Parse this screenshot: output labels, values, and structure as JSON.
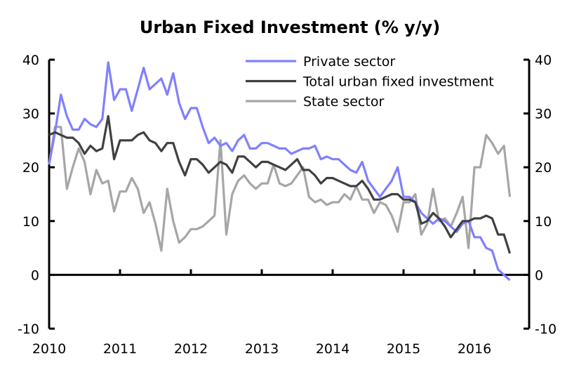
{
  "chart_data": {
    "type": "line",
    "title": "Urban Fixed Investment (% y/y)",
    "xlabel": "",
    "ylabel": "",
    "ylim": [
      -10,
      40
    ],
    "yticks": [
      -10,
      0,
      10,
      20,
      30,
      40
    ],
    "y2ticks": [
      -10,
      0,
      10,
      20,
      30,
      40
    ],
    "xticks": [
      "2010",
      "2011",
      "2012",
      "2013",
      "2014",
      "2015",
      "2016"
    ],
    "x_start": "2010-01",
    "x_frequency": "monthly",
    "grid": false,
    "legend_position": "top-center",
    "series": [
      {
        "name": "Private sector",
        "color": "#8080ff",
        "values": [
          20.5,
          26.5,
          33.5,
          29.5,
          27,
          27,
          29,
          28,
          27.5,
          29,
          39.5,
          32.5,
          34.5,
          34.5,
          30.5,
          34.5,
          38.5,
          34.5,
          35.5,
          36.5,
          33.5,
          37.5,
          32,
          29,
          31,
          31,
          27.5,
          24.5,
          25.5,
          24,
          24.5,
          23,
          25,
          26,
          23.5,
          23.5,
          24.5,
          24.5,
          24,
          23.5,
          23.5,
          22.5,
          23,
          23.5,
          23.5,
          24,
          21.5,
          22,
          21.5,
          21.5,
          20.5,
          19.5,
          19,
          21,
          17.5,
          16,
          14.5,
          16,
          17.5,
          20,
          14.5,
          14.5,
          13.5,
          11.5,
          10.5,
          9.5,
          10.5,
          10,
          9,
          8,
          9.5,
          10,
          7,
          7,
          5,
          4.5,
          1,
          0,
          -1
        ]
      },
      {
        "name": "Total urban fixed investment",
        "color": "#404040",
        "values": [
          26,
          26.5,
          26,
          25.5,
          25.5,
          24.5,
          22.5,
          24,
          23,
          23.5,
          29.5,
          21.5,
          25,
          25,
          25,
          26,
          26.5,
          25,
          24.5,
          23,
          24.5,
          24.5,
          21,
          18.5,
          21.5,
          21.5,
          20.5,
          19,
          20,
          21,
          20.5,
          19,
          22,
          22,
          21,
          20,
          21,
          21,
          20.5,
          20,
          19.5,
          20.5,
          21.5,
          19.5,
          19.5,
          18.5,
          17,
          18,
          18,
          17.5,
          17,
          16.5,
          16.5,
          17.5,
          16,
          14,
          14,
          14.5,
          15,
          15,
          14,
          14,
          13.5,
          9.5,
          10,
          11.5,
          10.5,
          9,
          7,
          8.5,
          10,
          10,
          10.5,
          10.5,
          11,
          10.5,
          7.5,
          7.5,
          4
        ]
      },
      {
        "name": "State sector",
        "color": "#a6a6a6",
        "values": [
          20.5,
          27.5,
          27.5,
          16,
          20,
          23.5,
          21,
          15,
          19.5,
          17,
          17.5,
          11.8,
          15.5,
          15.5,
          18,
          16,
          11.5,
          13.5,
          9.5,
          4.5,
          16,
          10,
          6,
          7,
          8.5,
          8.5,
          9,
          10,
          11,
          25,
          7.5,
          15,
          17.5,
          18.5,
          17,
          16,
          17,
          17,
          20.5,
          17,
          16.5,
          17,
          18.5,
          20,
          14.5,
          13.5,
          14,
          13,
          13.5,
          13.5,
          15,
          14,
          16.5,
          14,
          14,
          11.5,
          13.5,
          13,
          11,
          8,
          13.5,
          13.5,
          15,
          7.5,
          9.5,
          16,
          10,
          10.5,
          9,
          11.5,
          14.5,
          5,
          20,
          20,
          26,
          24.5,
          22.5,
          24,
          14.5
        ]
      }
    ]
  }
}
